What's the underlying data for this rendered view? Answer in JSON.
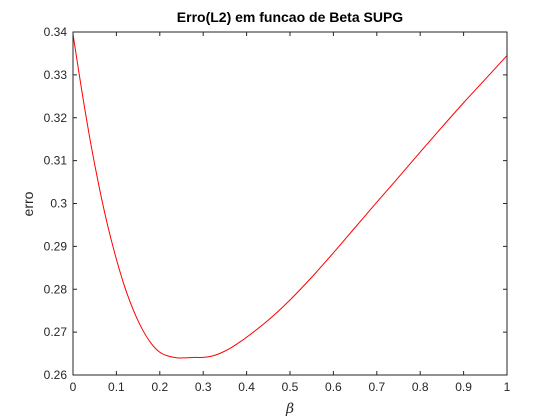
{
  "chart_data": {
    "type": "line",
    "title": "Erro(L2) em funcao de Beta SUPG",
    "xlabel": "β",
    "ylabel": "erro",
    "xlim": [
      0,
      1
    ],
    "ylim": [
      0.26,
      0.34
    ],
    "grid": false,
    "x_ticks": [
      "0",
      "0.1",
      "0.2",
      "0.3",
      "0.4",
      "0.5",
      "0.6",
      "0.7",
      "0.8",
      "0.9",
      "1"
    ],
    "y_ticks": [
      "0.26",
      "0.27",
      "0.28",
      "0.29",
      "0.3",
      "0.31",
      "0.32",
      "0.33",
      "0.34"
    ],
    "series": [
      {
        "color": "#ff0000",
        "x": [
          0.0,
          0.02,
          0.04,
          0.06,
          0.08,
          0.1,
          0.12,
          0.14,
          0.16,
          0.18,
          0.2,
          0.22,
          0.24,
          0.26,
          0.28,
          0.3,
          0.32,
          0.34,
          0.36,
          0.38,
          0.4,
          0.45,
          0.5,
          0.55,
          0.6,
          0.65,
          0.7,
          0.75,
          0.8,
          0.85,
          0.9,
          0.95,
          1.0
        ],
        "y": [
          0.3395,
          0.3265,
          0.3145,
          0.304,
          0.2948,
          0.287,
          0.2803,
          0.2749,
          0.2706,
          0.2674,
          0.2653,
          0.2644,
          0.264,
          0.264,
          0.2641,
          0.2641,
          0.2644,
          0.2651,
          0.2661,
          0.2674,
          0.2688,
          0.2728,
          0.2775,
          0.2828,
          0.2885,
          0.2944,
          0.3003,
          0.3061,
          0.312,
          0.3178,
          0.3235,
          0.329,
          0.3345
        ]
      }
    ]
  }
}
